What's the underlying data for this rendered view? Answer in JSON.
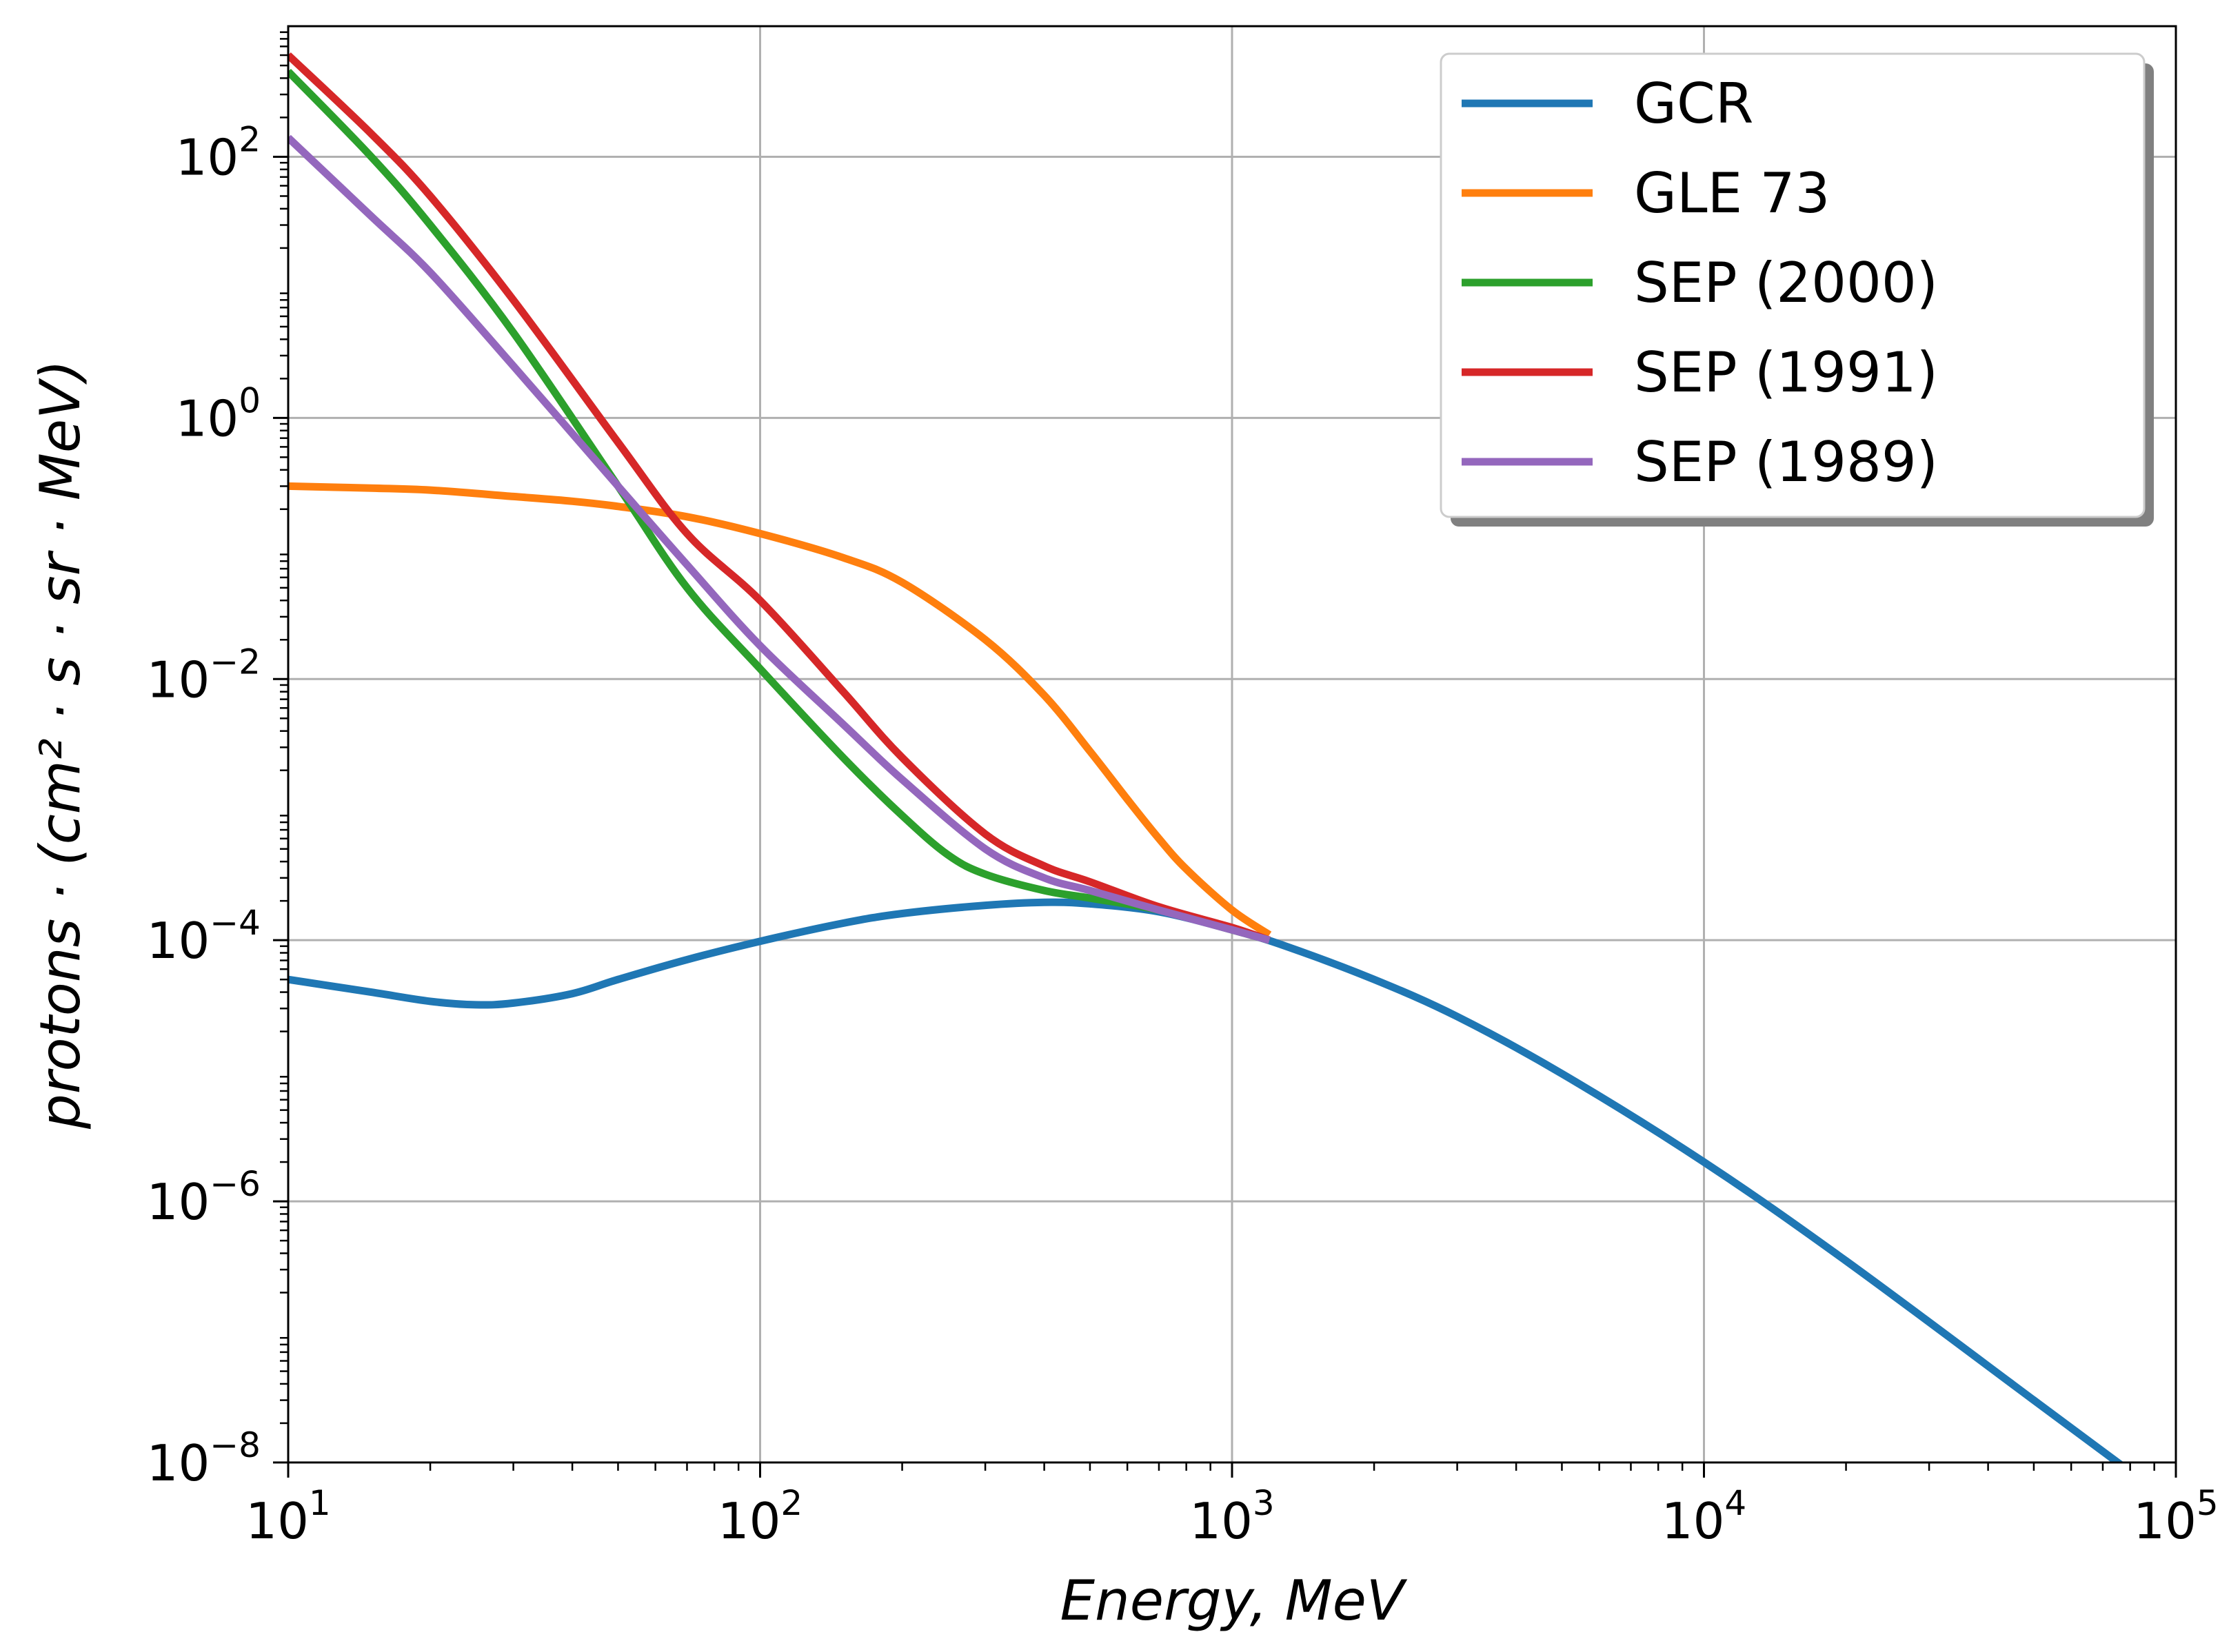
{
  "chart_data": {
    "type": "line",
    "xscale": "log",
    "yscale": "log",
    "xlim": [
      10,
      100000
    ],
    "ylim": [
      1e-08,
      1000
    ],
    "xlabel": "Energy, MeV",
    "ylabel": "protons · (cm² · s · sr · MeV)",
    "xticks": [
      {
        "value": 10,
        "base": "10",
        "exp": "1"
      },
      {
        "value": 100,
        "base": "10",
        "exp": "2"
      },
      {
        "value": 1000,
        "base": "10",
        "exp": "3"
      },
      {
        "value": 10000,
        "base": "10",
        "exp": "4"
      },
      {
        "value": 100000,
        "base": "10",
        "exp": "5"
      }
    ],
    "yticks": [
      {
        "value": 1e-08,
        "base": "10",
        "exp": "−8"
      },
      {
        "value": 1e-06,
        "base": "10",
        "exp": "−6"
      },
      {
        "value": 0.0001,
        "base": "10",
        "exp": "−4"
      },
      {
        "value": 0.01,
        "base": "10",
        "exp": "−2"
      },
      {
        "value": 1,
        "base": "10",
        "exp": "0"
      },
      {
        "value": 100,
        "base": "10",
        "exp": "2"
      }
    ],
    "grid": true,
    "legend_position": "top-right",
    "series": [
      {
        "name": "GCR",
        "color": "#1f77b4",
        "x": [
          10,
          15,
          20,
          25,
          30,
          40,
          50,
          70,
          100,
          150,
          200,
          300,
          400,
          500,
          700,
          1000,
          1300,
          2000,
          3000,
          5000,
          10000,
          20000,
          50000,
          80000
        ],
        "y": [
          5e-05,
          4e-05,
          3.4e-05,
          3.2e-05,
          3.3e-05,
          3.9e-05,
          5e-05,
          7.1e-05,
          9.8e-05,
          0.000135,
          0.00016,
          0.000185,
          0.000195,
          0.00019,
          0.000165,
          0.00012,
          9e-05,
          5e-05,
          2.6e-05,
          9.5e-06,
          2e-06,
          3.5e-07,
          3e-08,
          8.5e-09
        ]
      },
      {
        "name": "GLE 73",
        "color": "#ff7f0e",
        "x": [
          10,
          15,
          20,
          30,
          40,
          50,
          70,
          100,
          150,
          200,
          300,
          400,
          500,
          600,
          700,
          800,
          1000,
          1200
        ],
        "y": [
          0.3,
          0.29,
          0.28,
          0.25,
          0.23,
          0.21,
          0.175,
          0.13,
          0.085,
          0.055,
          0.02,
          0.0075,
          0.0028,
          0.0012,
          0.0006,
          0.00035,
          0.00017,
          0.00011
        ]
      },
      {
        "name": "SEP (2000)",
        "color": "#2ca02c",
        "x": [
          10,
          15,
          20,
          30,
          50,
          70,
          100,
          150,
          200,
          250,
          300,
          400,
          500,
          700,
          1000,
          1200
        ],
        "y": [
          450,
          100,
          30,
          4.5,
          0.3,
          0.05,
          0.012,
          0.0025,
          0.0009,
          0.00045,
          0.00032,
          0.00024,
          0.00021,
          0.00017,
          0.00012,
          0.0001
        ]
      },
      {
        "name": "SEP (1991)",
        "color": "#d62728",
        "x": [
          10,
          15,
          20,
          30,
          50,
          70,
          100,
          150,
          200,
          300,
          400,
          500,
          700,
          1000,
          1200
        ],
        "y": [
          600,
          150,
          50,
          8,
          0.65,
          0.13,
          0.04,
          0.008,
          0.0025,
          0.00065,
          0.00037,
          0.00028,
          0.00018,
          0.000125,
          0.0001
        ]
      },
      {
        "name": "SEP (1989)",
        "color": "#9467bd",
        "x": [
          10,
          15,
          20,
          30,
          50,
          70,
          100,
          150,
          200,
          300,
          400,
          500,
          700,
          1000,
          1200
        ],
        "y": [
          140,
          35,
          13,
          2.5,
          0.3,
          0.075,
          0.018,
          0.0045,
          0.0017,
          0.0005,
          0.0003,
          0.00024,
          0.00017,
          0.00012,
          0.0001
        ]
      }
    ]
  }
}
